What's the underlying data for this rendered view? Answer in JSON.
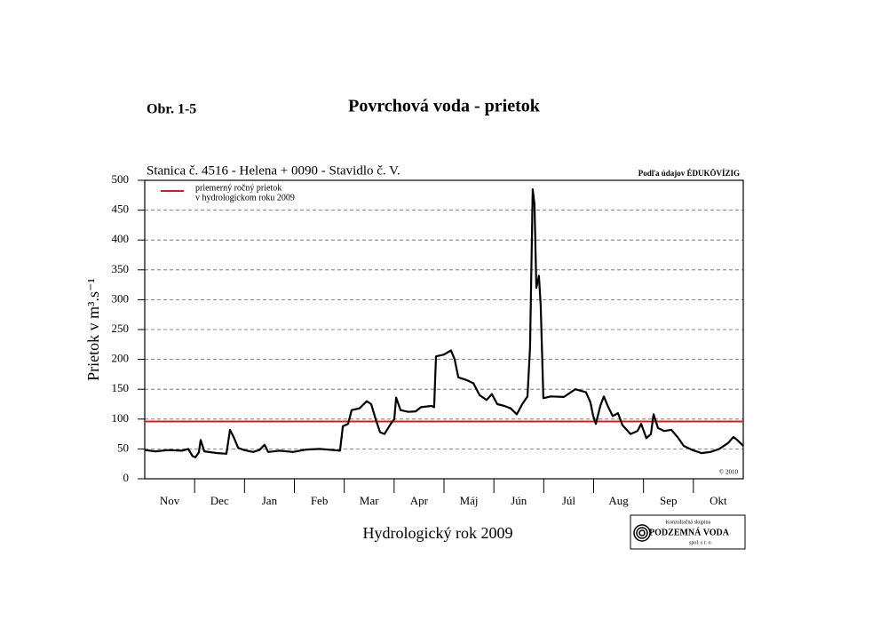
{
  "figure_label": "Obr. 1-5",
  "chart_data": {
    "type": "line",
    "title": "Povrchová voda - prietok",
    "subtitle": "Stanica č. 4516 - Helena + 0090 - Stavidlo č. V.",
    "source_note": "Podľa údajov ÉDUKÖVÍZIG",
    "copyright": "© 2010",
    "y_label": "Prietok v m³.s⁻¹",
    "x_label": "Hydrologický rok 2009",
    "categories": [
      "Nov",
      "Dec",
      "Jan",
      "Feb",
      "Mar",
      "Apr",
      "Máj",
      "Jún",
      "Júl",
      "Aug",
      "Sep",
      "Okt"
    ],
    "xlim": [
      0,
      365
    ],
    "x": [
      0,
      6.5,
      14.6,
      22.7,
      26.5,
      29.2,
      30.9,
      33,
      34.1,
      36.3,
      44.4,
      49.8,
      52,
      54.2,
      56.9,
      60.6,
      66,
      69.9,
      73.1,
      75.3,
      82.3,
      90.4,
      98.6,
      106.7,
      114.8,
      119.1,
      120.8,
      124,
      126.2,
      131,
      135.4,
      138.1,
      140.8,
      143.5,
      146.2,
      150,
      152.2,
      153.3,
      156,
      160.8,
      165.2,
      168.4,
      174.9,
      176.5,
      177.6,
      182.5,
      186.8,
      189,
      191.2,
      196.6,
      200.4,
      204.2,
      208.5,
      211.7,
      215,
      219.3,
      223.1,
      226.9,
      230.2,
      233.4,
      235,
      236.6,
      237.7,
      238.8,
      240.4,
      241.5,
      243.1,
      247.5,
      255.6,
      262.6,
      269.1,
      271.8,
      273.5,
      275.1,
      277.8,
      280,
      282.7,
      285.4,
      288.6,
      291.3,
      296.2,
      300.5,
      302.7,
      305.9,
      308.7,
      310.3,
      313,
      316.8,
      321.1,
      324.9,
      328.7,
      334.1,
      339.5,
      345,
      350.4,
      355.8,
      359,
      361.3,
      365
    ],
    "series": [
      {
        "name": "Prietok",
        "color": "#000000",
        "values": [
          48,
          46,
          48,
          47,
          50,
          38,
          36,
          44,
          65,
          46,
          43,
          42,
          82,
          70,
          52,
          48,
          45,
          48,
          57,
          45,
          47,
          45,
          49,
          50,
          48,
          47,
          88,
          92,
          115,
          118,
          130,
          125,
          100,
          78,
          75,
          92,
          100,
          136,
          115,
          112,
          113,
          120,
          122,
          120,
          205,
          208,
          215,
          200,
          170,
          165,
          160,
          140,
          132,
          142,
          125,
          122,
          118,
          108,
          125,
          138,
          220,
          485,
          460,
          320,
          340,
          290,
          135,
          138,
          137,
          150,
          145,
          128,
          105,
          92,
          122,
          138,
          120,
          105,
          110,
          90,
          75,
          80,
          92,
          68,
          75,
          108,
          85,
          80,
          82,
          70,
          55,
          48,
          43,
          45,
          50,
          60,
          70,
          65,
          55
        ]
      }
    ],
    "reference_line": {
      "value": 96,
      "color": "#e8141b",
      "label_lines": [
        "priemerný ročný prietok",
        "v hydrologickom roku 2009"
      ]
    },
    "ylim": [
      0,
      500
    ],
    "yticks": [
      0,
      50,
      100,
      150,
      200,
      250,
      300,
      350,
      400,
      450,
      500
    ],
    "grid": true,
    "logo": {
      "line1": "Konzultačná skupina",
      "line2": "PODZEMNÁ VODA",
      "line3": "spol. s r. o."
    }
  }
}
